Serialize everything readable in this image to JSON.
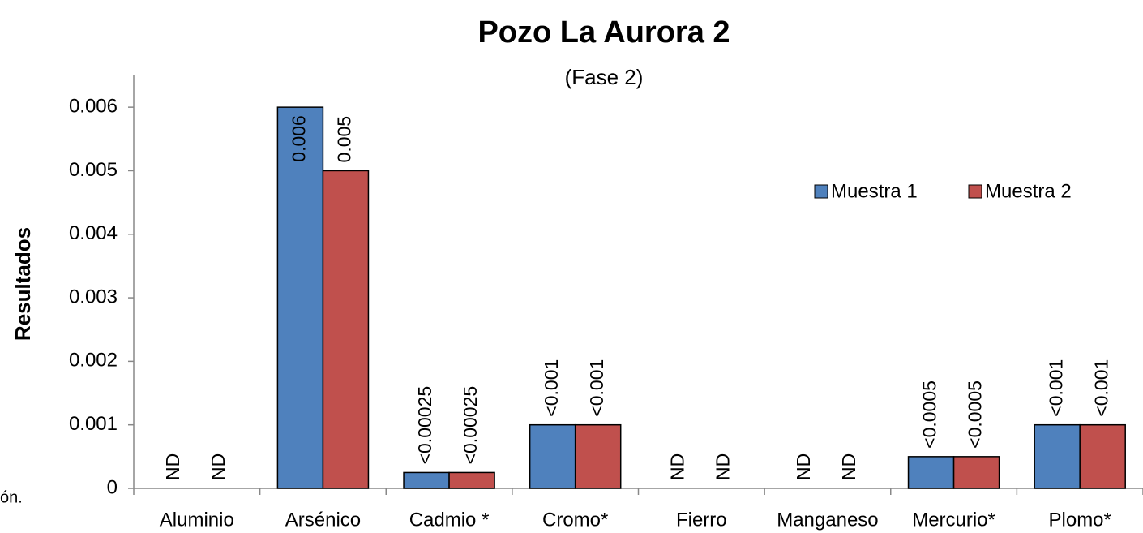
{
  "chart_data": {
    "type": "bar",
    "title": "Pozo La Aurora 2",
    "subtitle": "(Fase 2)",
    "y_label": "Resultados",
    "annotation": "ón.",
    "categories": [
      "Aluminio",
      "Arsénico",
      "Cadmio *",
      "Cromo*",
      "Fierro",
      "Manganeso",
      "Mercurio*",
      "Plomo*"
    ],
    "series": [
      {
        "name": "Muestra 1",
        "color": "#4f81bd",
        "values": [
          null,
          0.006,
          0.00025,
          0.001,
          null,
          null,
          0.0005,
          0.001
        ],
        "value_labels": [
          "ND",
          "0.006",
          "<0.00025",
          "<0.001",
          "ND",
          "ND",
          "<0.0005",
          "<0.001"
        ]
      },
      {
        "name": "Muestra 2",
        "color": "#c0504d",
        "values": [
          null,
          0.005,
          0.00025,
          0.001,
          null,
          null,
          0.0005,
          0.001
        ],
        "value_labels": [
          "ND",
          "0.005",
          "<0.00025",
          "<0.001",
          "ND",
          "ND",
          "<0.0005",
          "<0.001"
        ]
      }
    ],
    "ylim": [
      0,
      0.0065
    ],
    "yticks": [
      0,
      0.001,
      0.002,
      0.003,
      0.004,
      0.005,
      0.006
    ],
    "grid": false,
    "legend": "upper right"
  }
}
